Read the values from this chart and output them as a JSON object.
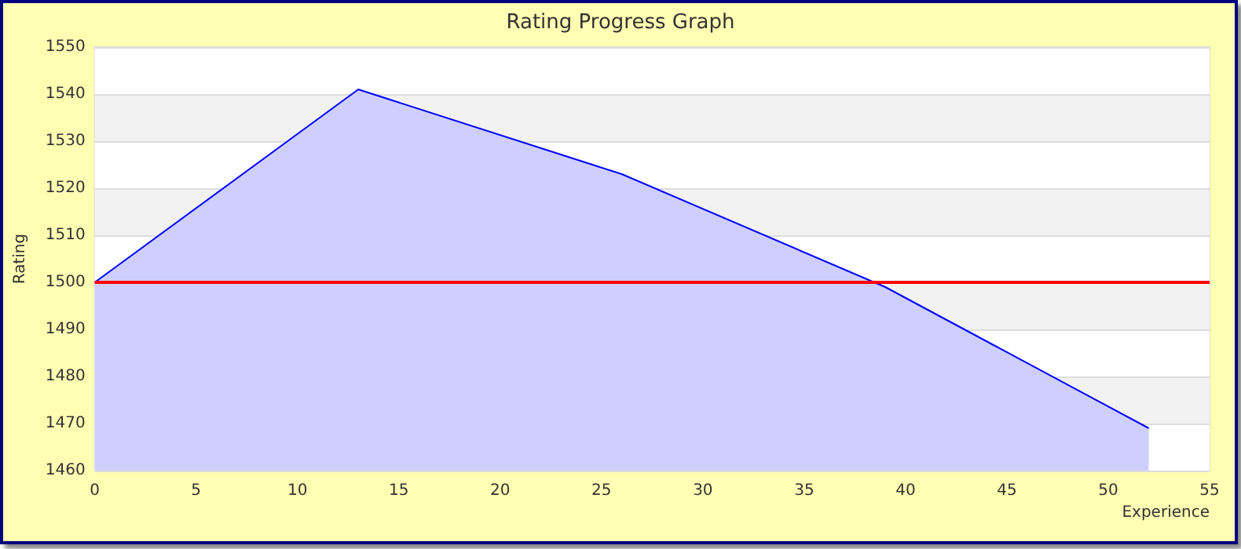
{
  "chart_data": {
    "type": "area",
    "title": "Rating Progress Graph",
    "xlabel": "Experience",
    "ylabel": "Rating",
    "x": [
      0,
      13,
      26,
      39,
      52
    ],
    "series": [
      {
        "color": "#0000ff",
        "values": [
          1500,
          1541,
          1523,
          1499,
          1469
        ]
      }
    ],
    "xlim": [
      0,
      55
    ],
    "xticks": [
      0,
      5,
      10,
      15,
      20,
      25,
      30,
      35,
      40,
      45,
      50,
      55
    ],
    "ylim": [
      1460,
      1550
    ],
    "yticks": [
      1460,
      1470,
      1480,
      1490,
      1500,
      1510,
      1520,
      1530,
      1540,
      1550
    ],
    "grid": "y",
    "marker": "none",
    "line_style": "solid",
    "ref_lines": [
      {
        "axis": "y",
        "value": 1500,
        "color": "#ff0000",
        "line_style": "solid"
      }
    ]
  }
}
